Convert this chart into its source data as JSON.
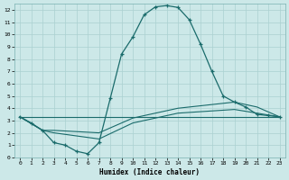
{
  "title": "",
  "xlabel": "Humidex (Indice chaleur)",
  "bg_color": "#cce8e8",
  "grid_color": "#aad0d0",
  "line_color": "#1a6b6b",
  "xlim": [
    -0.5,
    23.5
  ],
  "ylim": [
    0,
    12.5
  ],
  "xticks": [
    0,
    1,
    2,
    3,
    4,
    5,
    6,
    7,
    8,
    9,
    10,
    11,
    12,
    13,
    14,
    15,
    16,
    17,
    18,
    19,
    20,
    21,
    22,
    23
  ],
  "yticks": [
    0,
    1,
    2,
    3,
    4,
    5,
    6,
    7,
    8,
    9,
    10,
    11,
    12
  ],
  "line1_x": [
    0,
    1,
    2,
    3,
    4,
    5,
    6,
    7,
    8,
    9,
    10,
    11,
    12,
    13,
    14,
    15,
    16,
    17,
    18,
    19,
    20,
    21,
    22,
    23
  ],
  "line1_y": [
    3.3,
    2.8,
    2.2,
    1.2,
    1.0,
    0.5,
    0.3,
    1.2,
    4.8,
    8.4,
    9.8,
    11.6,
    12.25,
    12.35,
    12.2,
    11.2,
    9.2,
    7.0,
    5.0,
    4.5,
    4.1,
    3.5,
    3.4,
    3.3
  ],
  "line2_x": [
    0,
    2,
    3,
    7,
    10,
    14,
    19,
    21,
    23
  ],
  "line2_y": [
    3.3,
    2.2,
    2.2,
    2.0,
    3.2,
    4.0,
    4.5,
    4.1,
    3.3
  ],
  "line3_x": [
    0,
    2,
    3,
    7,
    10,
    14,
    19,
    21,
    23
  ],
  "line3_y": [
    3.3,
    2.2,
    2.0,
    1.5,
    2.8,
    3.6,
    3.9,
    3.6,
    3.3
  ],
  "line4_x": [
    0,
    23
  ],
  "line4_y": [
    3.3,
    3.3
  ]
}
